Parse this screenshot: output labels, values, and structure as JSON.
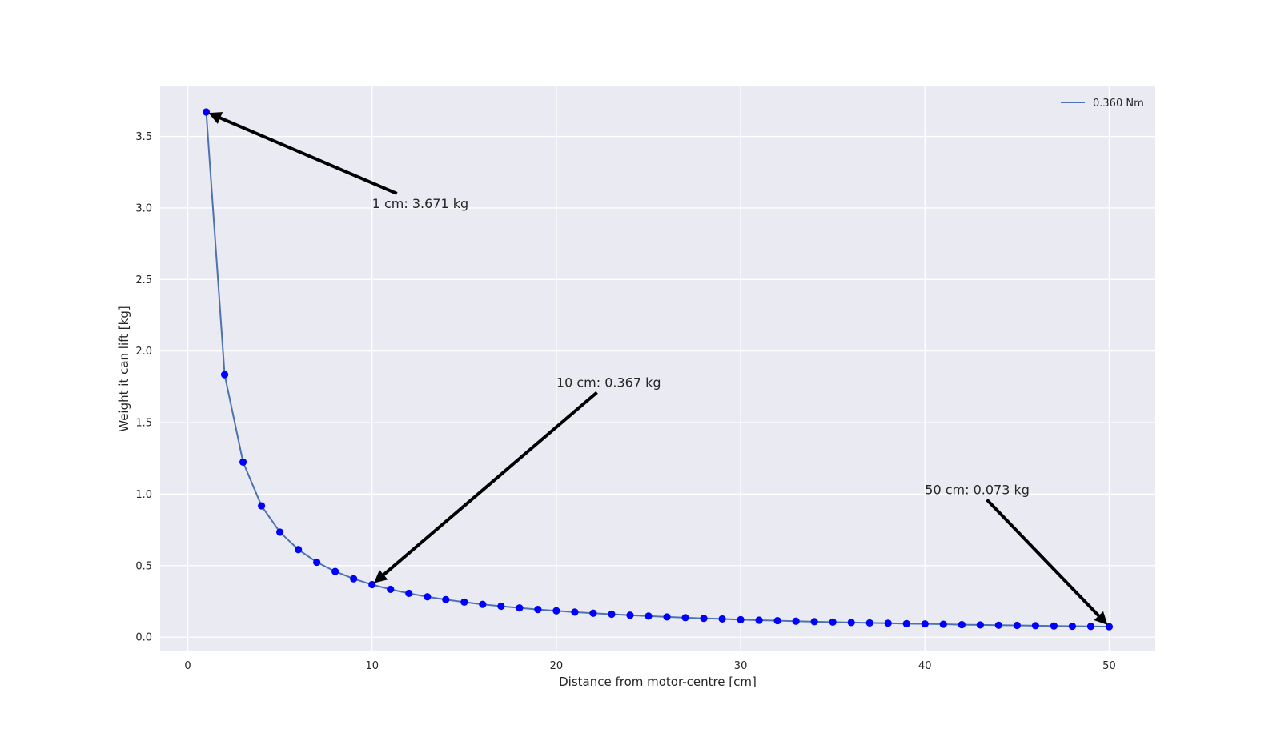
{
  "chart_data": {
    "type": "line",
    "title": "",
    "xlabel": "Distance from motor-centre [cm]",
    "ylabel": "Weight it can lift [kg]",
    "xlim": [
      -1.5,
      52.5
    ],
    "ylim": [
      -0.1,
      3.85
    ],
    "xticks": [
      0,
      10,
      20,
      30,
      40,
      50
    ],
    "xtick_labels": [
      "0",
      "10",
      "20",
      "30",
      "40",
      "50"
    ],
    "yticks": [
      0.0,
      0.5,
      1.0,
      1.5,
      2.0,
      2.5,
      3.0,
      3.5
    ],
    "ytick_labels": [
      "0.0",
      "0.5",
      "1.0",
      "1.5",
      "2.0",
      "2.5",
      "3.0",
      "3.5"
    ],
    "grid": true,
    "legend_position": "top-right",
    "series": [
      {
        "name": "0.360 Nm",
        "line_color": "#4c72b0",
        "marker_color": "#0000ff",
        "x": [
          1,
          2,
          3,
          4,
          5,
          6,
          7,
          8,
          9,
          10,
          11,
          12,
          13,
          14,
          15,
          16,
          17,
          18,
          19,
          20,
          21,
          22,
          23,
          24,
          25,
          26,
          27,
          28,
          29,
          30,
          31,
          32,
          33,
          34,
          35,
          36,
          37,
          38,
          39,
          40,
          41,
          42,
          43,
          44,
          45,
          46,
          47,
          48,
          49,
          50
        ],
        "y": [
          3.671,
          1.835,
          1.224,
          0.918,
          0.734,
          0.612,
          0.524,
          0.459,
          0.408,
          0.367,
          0.334,
          0.306,
          0.282,
          0.262,
          0.245,
          0.229,
          0.216,
          0.204,
          0.193,
          0.184,
          0.175,
          0.167,
          0.16,
          0.153,
          0.147,
          0.141,
          0.136,
          0.131,
          0.127,
          0.122,
          0.118,
          0.115,
          0.111,
          0.108,
          0.105,
          0.102,
          0.099,
          0.097,
          0.094,
          0.092,
          0.09,
          0.087,
          0.085,
          0.083,
          0.082,
          0.08,
          0.078,
          0.076,
          0.075,
          0.073
        ]
      }
    ],
    "annotations": [
      {
        "text": "1 cm: 3.671 kg",
        "point": [
          1,
          3.671
        ],
        "text_pos": [
          10,
          3.0
        ]
      },
      {
        "text": "10 cm: 0.367 kg",
        "point": [
          10,
          0.367
        ],
        "text_pos": [
          20,
          1.75
        ]
      },
      {
        "text": "50 cm: 0.073 kg",
        "point": [
          50,
          0.073
        ],
        "text_pos": [
          40,
          1.0
        ]
      }
    ],
    "colors": {
      "plot_background": "#eaeaf2",
      "grid": "#ffffff",
      "annotation_arrow": "#000000"
    }
  }
}
